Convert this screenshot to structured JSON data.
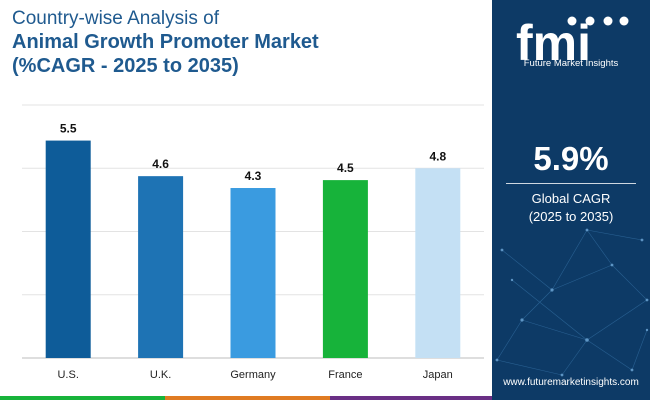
{
  "title": {
    "line1": "Country-wise Analysis of",
    "line2": "Animal Growth Promoter Market",
    "line3": "(%CAGR - 2025 to 2035)"
  },
  "chart_data": {
    "type": "bar",
    "categories": [
      "U.S.",
      "U.K.",
      "Germany",
      "France",
      "Japan"
    ],
    "values": [
      5.5,
      4.6,
      4.3,
      4.5,
      4.8
    ],
    "value_labels": [
      "5.5",
      "4.6",
      "4.3",
      "4.5",
      "4.8"
    ],
    "colors": [
      "#0e5c99",
      "#1e73b4",
      "#3a9be0",
      "#17b33a",
      "#c4e0f4"
    ],
    "grid": true,
    "ylim": [
      0,
      6.4
    ]
  },
  "side_panel": {
    "logo_text": "fmi",
    "brand_name": "Future Market Insights",
    "cagr_value": "5.9%",
    "cagr_label_line1": "Global CAGR",
    "cagr_label_line2": "(2025 to 2035)",
    "website": "www.futuremarketinsights.com",
    "background_color": "#0d3a66"
  },
  "footer_colors": [
    "#17b33a",
    "#e07b22",
    "#6a2f85"
  ]
}
